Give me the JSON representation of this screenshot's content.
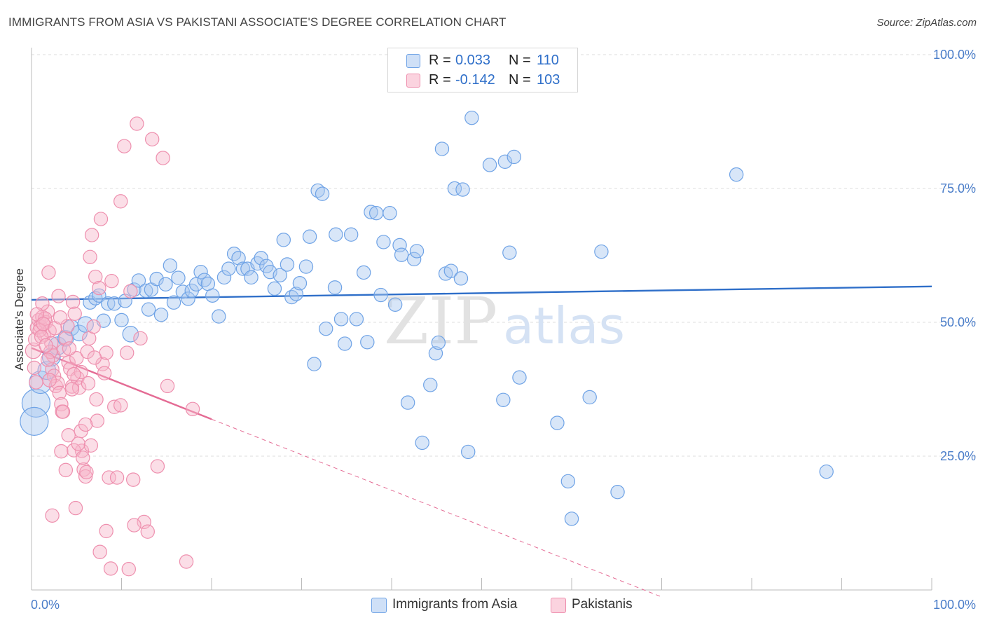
{
  "header": {
    "title": "IMMIGRANTS FROM ASIA VS PAKISTANI ASSOCIATE'S DEGREE CORRELATION CHART",
    "source": "Source: ZipAtlas.com"
  },
  "watermark": {
    "part1": "ZIP",
    "part2": "atlas"
  },
  "legend": {
    "entries": [
      {
        "r_label": "R =",
        "r_value": "0.033",
        "n_label": "N =",
        "n_value": "110",
        "color": "#a9c8f0"
      },
      {
        "r_label": "R =",
        "r_value": "-0.142",
        "n_label": "N =",
        "n_value": "103",
        "color": "#f6b6c9"
      }
    ]
  },
  "bottom_legend": [
    {
      "label": "Immigrants from Asia",
      "color": "#a9c8f0"
    },
    {
      "label": "Pakistanis",
      "color": "#f6b6c9"
    }
  ],
  "chart_data": {
    "type": "scatter",
    "title": "IMMIGRANTS FROM ASIA VS PAKISTANI ASSOCIATE'S DEGREE CORRELATION CHART",
    "xlabel": "",
    "ylabel": "Associate's Degree",
    "xlim": [
      0,
      100
    ],
    "ylim": [
      0,
      100
    ],
    "x_tick_labels": [
      {
        "value": 0,
        "label": "0.0%"
      },
      {
        "value": 100,
        "label": "100.0%"
      }
    ],
    "y_tick_labels": [
      {
        "value": 25,
        "label": "25.0%"
      },
      {
        "value": 50,
        "label": "50.0%"
      },
      {
        "value": 75,
        "label": "75.0%"
      },
      {
        "value": 100,
        "label": "100.0%"
      }
    ],
    "series": [
      {
        "name": "Immigrants from Asia",
        "color": "#6fa3e6",
        "fill": "#a9c8f0",
        "trend": {
          "x0": 0,
          "y0": 54.2,
          "x1": 100,
          "y1": 56.7,
          "color": "#2f6fc9"
        },
        "points": [
          [
            0.5,
            34.9,
            2.5
          ],
          [
            0.3,
            31.5,
            2.5
          ],
          [
            1.0,
            38.8,
            2
          ],
          [
            1.7,
            41.0,
            1.6
          ],
          [
            2.2,
            43.5,
            1.6
          ],
          [
            2.9,
            45.6,
            1.6
          ],
          [
            3.8,
            47.0,
            1.4
          ],
          [
            4.4,
            49.0,
            1.4
          ],
          [
            5.3,
            48.0,
            1.4
          ],
          [
            6.0,
            49.6,
            1.4
          ],
          [
            6.5,
            53.7,
            1.2
          ],
          [
            7.1,
            54.5,
            1.2
          ],
          [
            7.5,
            55.0,
            1.2
          ],
          [
            8.0,
            50.3,
            1.2
          ],
          [
            8.5,
            53.5,
            1.2
          ],
          [
            9.2,
            53.5,
            1.2
          ],
          [
            10.0,
            50.4,
            1.2
          ],
          [
            10.4,
            54.0,
            1.2
          ],
          [
            11.0,
            47.8,
            1.4
          ],
          [
            11.4,
            56.1,
            1.2
          ],
          [
            11.9,
            57.8,
            1.2
          ],
          [
            12.7,
            55.9,
            1.2
          ],
          [
            13.0,
            52.4,
            1.2
          ],
          [
            13.3,
            56.1,
            1.2
          ],
          [
            13.9,
            58.1,
            1.2
          ],
          [
            14.4,
            51.4,
            1.2
          ],
          [
            14.9,
            57.1,
            1.2
          ],
          [
            15.4,
            60.6,
            1.2
          ],
          [
            15.8,
            53.7,
            1.2
          ],
          [
            16.3,
            58.3,
            1.2
          ],
          [
            16.8,
            55.7,
            1.2
          ],
          [
            17.4,
            54.4,
            1.2
          ],
          [
            17.8,
            55.9,
            1.2
          ],
          [
            18.3,
            57.1,
            1.2
          ],
          [
            18.8,
            59.4,
            1.2
          ],
          [
            19.2,
            57.9,
            1.2
          ],
          [
            19.6,
            57.2,
            1.2
          ],
          [
            20.1,
            55.0,
            1.2
          ],
          [
            20.8,
            51.1,
            1.2
          ],
          [
            21.4,
            58.4,
            1.2
          ],
          [
            21.9,
            60.0,
            1.2
          ],
          [
            22.5,
            62.8,
            1.2
          ],
          [
            23.0,
            62.0,
            1.2
          ],
          [
            23.5,
            60.0,
            1.2
          ],
          [
            24.0,
            60.0,
            1.2
          ],
          [
            24.4,
            58.4,
            1.2
          ],
          [
            25.1,
            61.0,
            1.2
          ],
          [
            25.5,
            62.0,
            1.2
          ],
          [
            26.1,
            60.5,
            1.2
          ],
          [
            26.5,
            59.4,
            1.2
          ],
          [
            27.0,
            56.3,
            1.2
          ],
          [
            27.6,
            58.8,
            1.2
          ],
          [
            28.0,
            65.4,
            1.2
          ],
          [
            28.4,
            60.8,
            1.2
          ],
          [
            28.9,
            54.7,
            1.2
          ],
          [
            29.4,
            55.3,
            1.2
          ],
          [
            29.8,
            57.3,
            1.2
          ],
          [
            30.5,
            60.4,
            1.2
          ],
          [
            30.9,
            66.0,
            1.2
          ],
          [
            31.4,
            42.2,
            1.2
          ],
          [
            31.8,
            74.6,
            1.2
          ],
          [
            32.3,
            74.0,
            1.2
          ],
          [
            32.7,
            48.8,
            1.2
          ],
          [
            33.7,
            56.5,
            1.2
          ],
          [
            33.8,
            66.4,
            1.2
          ],
          [
            34.4,
            50.6,
            1.2
          ],
          [
            34.8,
            46.0,
            1.2
          ],
          [
            35.5,
            66.4,
            1.2
          ],
          [
            36.1,
            50.6,
            1.2
          ],
          [
            36.9,
            59.3,
            1.2
          ],
          [
            37.3,
            46.3,
            1.2
          ],
          [
            37.7,
            70.6,
            1.2
          ],
          [
            38.3,
            70.4,
            1.2
          ],
          [
            38.8,
            55.1,
            1.2
          ],
          [
            39.1,
            65.0,
            1.2
          ],
          [
            39.8,
            70.4,
            1.2
          ],
          [
            40.4,
            53.3,
            1.2
          ],
          [
            40.9,
            64.4,
            1.2
          ],
          [
            41.1,
            62.6,
            1.2
          ],
          [
            41.8,
            35.0,
            1.2
          ],
          [
            42.5,
            61.8,
            1.2
          ],
          [
            42.8,
            63.3,
            1.2
          ],
          [
            43.4,
            27.5,
            1.2
          ],
          [
            44.3,
            38.3,
            1.2
          ],
          [
            44.9,
            44.2,
            1.2
          ],
          [
            45.2,
            46.2,
            1.2
          ],
          [
            45.6,
            82.4,
            1.2
          ],
          [
            46.0,
            59.1,
            1.2
          ],
          [
            46.6,
            59.6,
            1.2
          ],
          [
            47.0,
            75.0,
            1.2
          ],
          [
            47.7,
            58.2,
            1.2
          ],
          [
            47.9,
            74.8,
            1.2
          ],
          [
            48.5,
            25.8,
            1.2
          ],
          [
            48.9,
            88.2,
            1.2
          ],
          [
            50.9,
            79.4,
            1.2
          ],
          [
            52.4,
            35.5,
            1.2
          ],
          [
            52.6,
            80.0,
            1.2
          ],
          [
            53.1,
            63.0,
            1.2
          ],
          [
            53.6,
            80.9,
            1.2
          ],
          [
            54.2,
            39.7,
            1.2
          ],
          [
            58.4,
            31.2,
            1.2
          ],
          [
            59.6,
            20.3,
            1.2
          ],
          [
            60.0,
            13.3,
            1.2
          ],
          [
            63.3,
            63.2,
            1.2
          ],
          [
            65.1,
            18.3,
            1.2
          ],
          [
            78.3,
            77.6,
            1.2
          ],
          [
            88.3,
            22.1,
            1.2
          ],
          [
            62.0,
            36.0,
            1.2
          ]
        ]
      },
      {
        "name": "Pakistanis",
        "color": "#ee8fae",
        "fill": "#f6b6c9",
        "trend": {
          "x0": 0,
          "y0": 45.2,
          "x1": 20,
          "y1": 31.9,
          "color": "#e46b94"
        },
        "trend_extension": {
          "x0": 20,
          "y0": 31.9,
          "x1": 70,
          "y1": -1.3
        },
        "points": [
          [
            0.2,
            44.7,
            1.4
          ],
          [
            0.4,
            46.8,
            1.2
          ],
          [
            0.6,
            49.0,
            1.2
          ],
          [
            0.8,
            50.4,
            1.2
          ],
          [
            1.0,
            49.2,
            1.2
          ],
          [
            1.2,
            51.0,
            1.2
          ],
          [
            1.4,
            47.7,
            1.2
          ],
          [
            1.6,
            50.0,
            1.2
          ],
          [
            1.8,
            52.0,
            1.2
          ],
          [
            2.0,
            48.4,
            1.2
          ],
          [
            2.2,
            46.1,
            1.2
          ],
          [
            2.4,
            43.8,
            1.2
          ],
          [
            1.2,
            53.5,
            1.2
          ],
          [
            1.5,
            50.7,
            1.2
          ],
          [
            1.9,
            59.3,
            1.2
          ],
          [
            2.1,
            44.5,
            1.2
          ],
          [
            2.3,
            41.2,
            1.2
          ],
          [
            2.5,
            40.0,
            1.2
          ],
          [
            2.7,
            38.1,
            1.2
          ],
          [
            2.9,
            38.7,
            1.2
          ],
          [
            3.1,
            36.8,
            1.2
          ],
          [
            3.3,
            34.7,
            1.2
          ],
          [
            3.4,
            33.3,
            1.2
          ],
          [
            3.6,
            44.8,
            1.2
          ],
          [
            3.8,
            47.0,
            1.2
          ],
          [
            4.0,
            49.3,
            1.2
          ],
          [
            4.1,
            42.5,
            1.2
          ],
          [
            4.3,
            41.3,
            1.2
          ],
          [
            4.5,
            38.0,
            1.2
          ],
          [
            4.6,
            53.8,
            1.2
          ],
          [
            4.8,
            51.6,
            1.2
          ],
          [
            5.0,
            43.3,
            1.2
          ],
          [
            5.1,
            39.6,
            1.2
          ],
          [
            5.3,
            37.8,
            1.2
          ],
          [
            5.5,
            29.7,
            1.2
          ],
          [
            5.6,
            26.0,
            1.2
          ],
          [
            5.8,
            22.5,
            1.2
          ],
          [
            6.0,
            21.2,
            1.2
          ],
          [
            6.2,
            44.5,
            1.2
          ],
          [
            6.4,
            47.0,
            1.2
          ],
          [
            6.5,
            62.2,
            1.2
          ],
          [
            6.7,
            66.3,
            1.2
          ],
          [
            6.9,
            49.2,
            1.2
          ],
          [
            7.1,
            58.5,
            1.2
          ],
          [
            7.3,
            31.6,
            1.2
          ],
          [
            7.5,
            56.4,
            1.2
          ],
          [
            7.7,
            69.3,
            1.2
          ],
          [
            7.9,
            42.2,
            1.2
          ],
          [
            8.1,
            40.5,
            1.2
          ],
          [
            8.3,
            44.3,
            1.2
          ],
          [
            8.6,
            21.0,
            1.2
          ],
          [
            8.9,
            57.7,
            1.2
          ],
          [
            9.2,
            34.2,
            1.2
          ],
          [
            9.5,
            21.0,
            1.2
          ],
          [
            9.9,
            72.6,
            1.2
          ],
          [
            10.3,
            82.9,
            1.2
          ],
          [
            10.6,
            44.3,
            1.2
          ],
          [
            11.0,
            55.8,
            1.2
          ],
          [
            11.3,
            20.6,
            1.2
          ],
          [
            11.7,
            87.1,
            1.2
          ],
          [
            12.1,
            47.0,
            1.2
          ],
          [
            12.5,
            12.7,
            1.2
          ],
          [
            12.9,
            10.9,
            1.2
          ],
          [
            13.4,
            84.2,
            1.2
          ],
          [
            14.0,
            23.1,
            1.2
          ],
          [
            14.6,
            80.7,
            1.2
          ],
          [
            15.1,
            38.1,
            1.2
          ],
          [
            17.2,
            5.3,
            1.2
          ],
          [
            2.3,
            13.9,
            1.2
          ],
          [
            3.3,
            25.9,
            1.2
          ],
          [
            3.5,
            33.3,
            1.2
          ],
          [
            3.8,
            22.4,
            1.2
          ],
          [
            4.1,
            28.9,
            1.2
          ],
          [
            4.5,
            37.5,
            1.2
          ],
          [
            4.7,
            26.1,
            1.2
          ],
          [
            4.9,
            15.3,
            1.2
          ],
          [
            5.2,
            27.3,
            1.2
          ],
          [
            5.5,
            40.7,
            1.2
          ],
          [
            6.0,
            30.9,
            1.2
          ],
          [
            6.3,
            38.6,
            1.2
          ],
          [
            6.6,
            27.0,
            1.2
          ],
          [
            7.0,
            43.4,
            1.2
          ],
          [
            7.6,
            7.1,
            1.2
          ],
          [
            8.3,
            11.0,
            1.2
          ],
          [
            8.8,
            4.0,
            1.2
          ],
          [
            9.9,
            34.5,
            1.2
          ],
          [
            10.8,
            3.9,
            1.2
          ],
          [
            11.4,
            12.1,
            1.2
          ],
          [
            0.6,
            51.5,
            1.2
          ],
          [
            0.9,
            48.5,
            1.2
          ],
          [
            1.1,
            47.3,
            1.2
          ],
          [
            1.3,
            49.7,
            1.2
          ],
          [
            1.6,
            45.7,
            1.2
          ],
          [
            1.8,
            43.0,
            1.2
          ],
          [
            2.0,
            39.2,
            1.2
          ],
          [
            2.6,
            48.9,
            1.2
          ],
          [
            3.0,
            54.9,
            1.2
          ],
          [
            3.2,
            50.9,
            1.2
          ],
          [
            4.2,
            45.1,
            1.2
          ],
          [
            4.7,
            40.3,
            1.2
          ],
          [
            5.7,
            24.7,
            1.2
          ],
          [
            6.1,
            22.0,
            1.2
          ],
          [
            7.2,
            35.6,
            1.2
          ],
          [
            17.9,
            33.8,
            1.2
          ],
          [
            0.3,
            41.5,
            1.2
          ],
          [
            0.5,
            38.8,
            1.2
          ]
        ]
      }
    ]
  }
}
